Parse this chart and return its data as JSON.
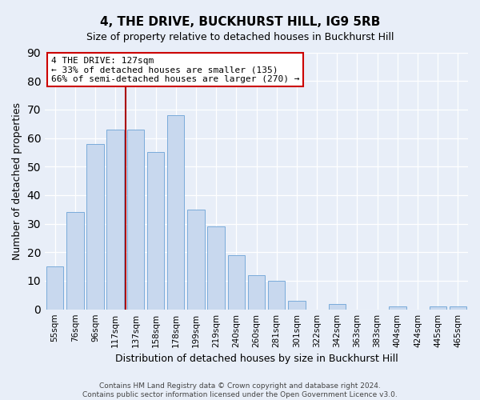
{
  "title": "4, THE DRIVE, BUCKHURST HILL, IG9 5RB",
  "subtitle": "Size of property relative to detached houses in Buckhurst Hill",
  "xlabel": "Distribution of detached houses by size in Buckhurst Hill",
  "ylabel": "Number of detached properties",
  "bar_labels": [
    "55sqm",
    "76sqm",
    "96sqm",
    "117sqm",
    "137sqm",
    "158sqm",
    "178sqm",
    "199sqm",
    "219sqm",
    "240sqm",
    "260sqm",
    "281sqm",
    "301sqm",
    "322sqm",
    "342sqm",
    "363sqm",
    "383sqm",
    "404sqm",
    "424sqm",
    "445sqm",
    "465sqm"
  ],
  "bar_heights": [
    15,
    34,
    58,
    63,
    63,
    55,
    68,
    35,
    29,
    19,
    12,
    10,
    3,
    0,
    2,
    0,
    0,
    1,
    0,
    1,
    1
  ],
  "bar_color": "#c8d8ee",
  "bar_edge_color": "#7aabda",
  "ylim": [
    0,
    90
  ],
  "yticks": [
    0,
    10,
    20,
    30,
    40,
    50,
    60,
    70,
    80,
    90
  ],
  "property_line_x": 3.5,
  "property_line_color": "#aa0000",
  "annotation_title": "4 THE DRIVE: 127sqm",
  "annotation_line1": "← 33% of detached houses are smaller (135)",
  "annotation_line2": "66% of semi-detached houses are larger (270) →",
  "annotation_box_edge_color": "#cc0000",
  "annotation_box_face_color": "#ffffff",
  "footer_line1": "Contains HM Land Registry data © Crown copyright and database right 2024.",
  "footer_line2": "Contains public sector information licensed under the Open Government Licence v3.0.",
  "background_color": "#e8eef8",
  "plot_background_color": "#e8eef8",
  "grid_color": "#ffffff",
  "title_fontsize": 11,
  "subtitle_fontsize": 9,
  "axis_label_fontsize": 9,
  "tick_fontsize": 7.5,
  "footer_fontsize": 6.5
}
